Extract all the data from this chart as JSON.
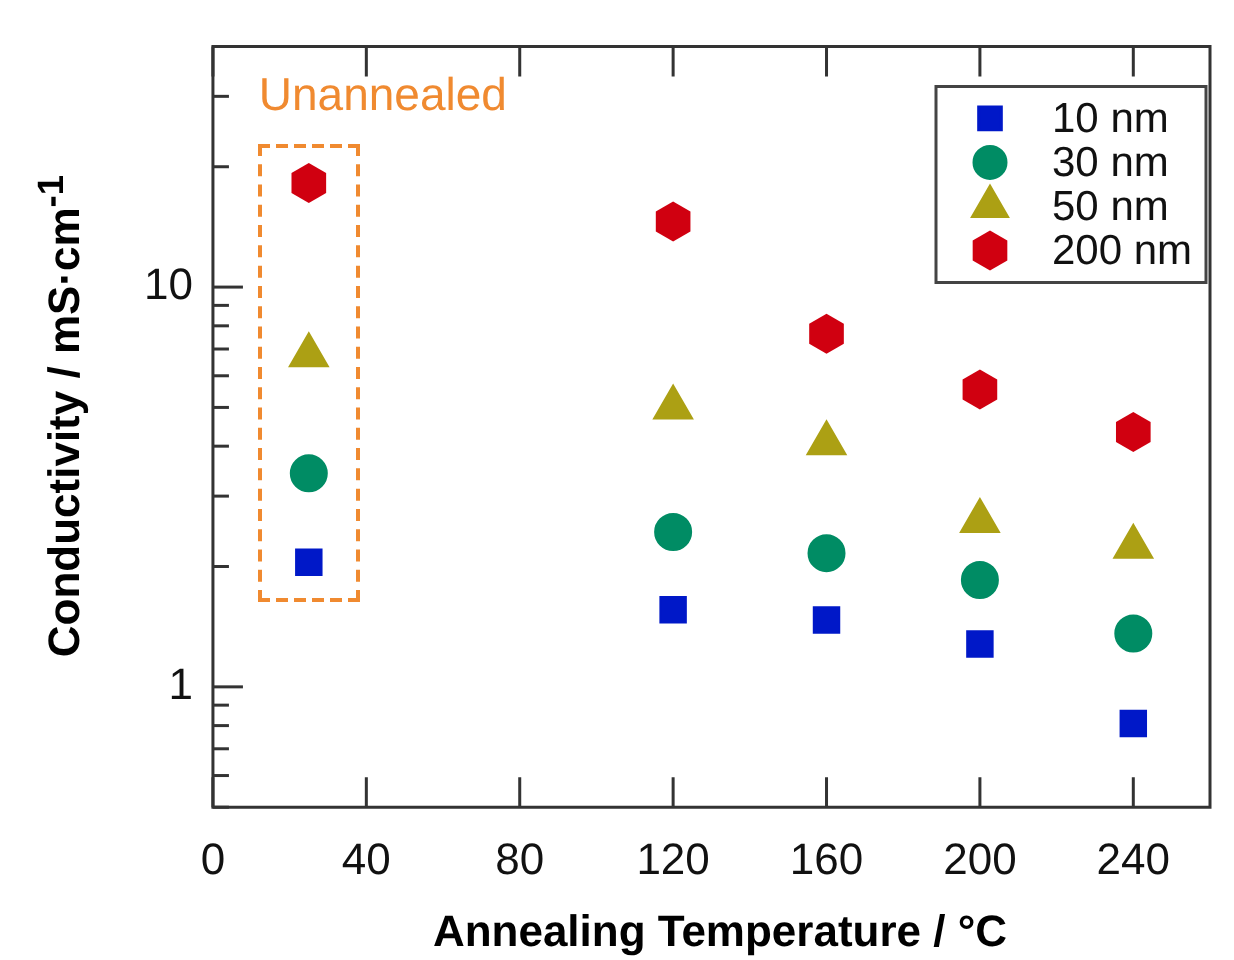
{
  "chart_data": {
    "type": "scatter",
    "xlabel": "Annealing Temperature / °C",
    "ylabel": "Conductivity / mS·cm$^{-1}$",
    "x": [
      25,
      120,
      160,
      200,
      240
    ],
    "series": [
      {
        "name": "10 nm",
        "color": "#0018c8",
        "marker": "square",
        "values": [
          2.05,
          1.56,
          1.47,
          1.28,
          0.81
        ]
      },
      {
        "name": "30 nm",
        "color": "#008c64",
        "marker": "circle",
        "values": [
          3.42,
          2.44,
          2.16,
          1.85,
          1.36
        ]
      },
      {
        "name": "50 nm",
        "color": "#aca014",
        "marker": "triangle",
        "values": [
          6.75,
          5.0,
          4.07,
          2.6,
          2.24
        ]
      },
      {
        "name": "200 nm",
        "color": "#d00010",
        "values": [
          18.2,
          14.6,
          7.64,
          5.54,
          4.34
        ]
      }
    ],
    "annotations": [
      "Unannealed"
    ],
    "log": "y",
    "xlim": [
      0,
      260
    ],
    "xticks": [
      0,
      40,
      80,
      120,
      160,
      200,
      240
    ],
    "ylim": [
      0.5,
      40
    ],
    "yticks": [
      {
        "value": 0.5,
        "label": null
      },
      {
        "value": 0.6,
        "label": null
      },
      {
        "value": 0.7,
        "label": null
      },
      {
        "value": 0.8,
        "label": null
      },
      {
        "value": 0.9,
        "label": null
      },
      1,
      {
        "value": 2,
        "label": null
      },
      {
        "value": 3,
        "label": null
      },
      {
        "value": 4,
        "label": null
      },
      {
        "value": 5,
        "label": null
      },
      {
        "value": 6,
        "label": null
      },
      {
        "value": 7,
        "label": null
      },
      {
        "value": 8,
        "label": null
      },
      {
        "value": 9,
        "label": null
      },
      10,
      {
        "value": 20,
        "label": null
      },
      {
        "value": 30,
        "label": null
      }
    ],
    "grid": false,
    "legend": "top right"
  }
}
